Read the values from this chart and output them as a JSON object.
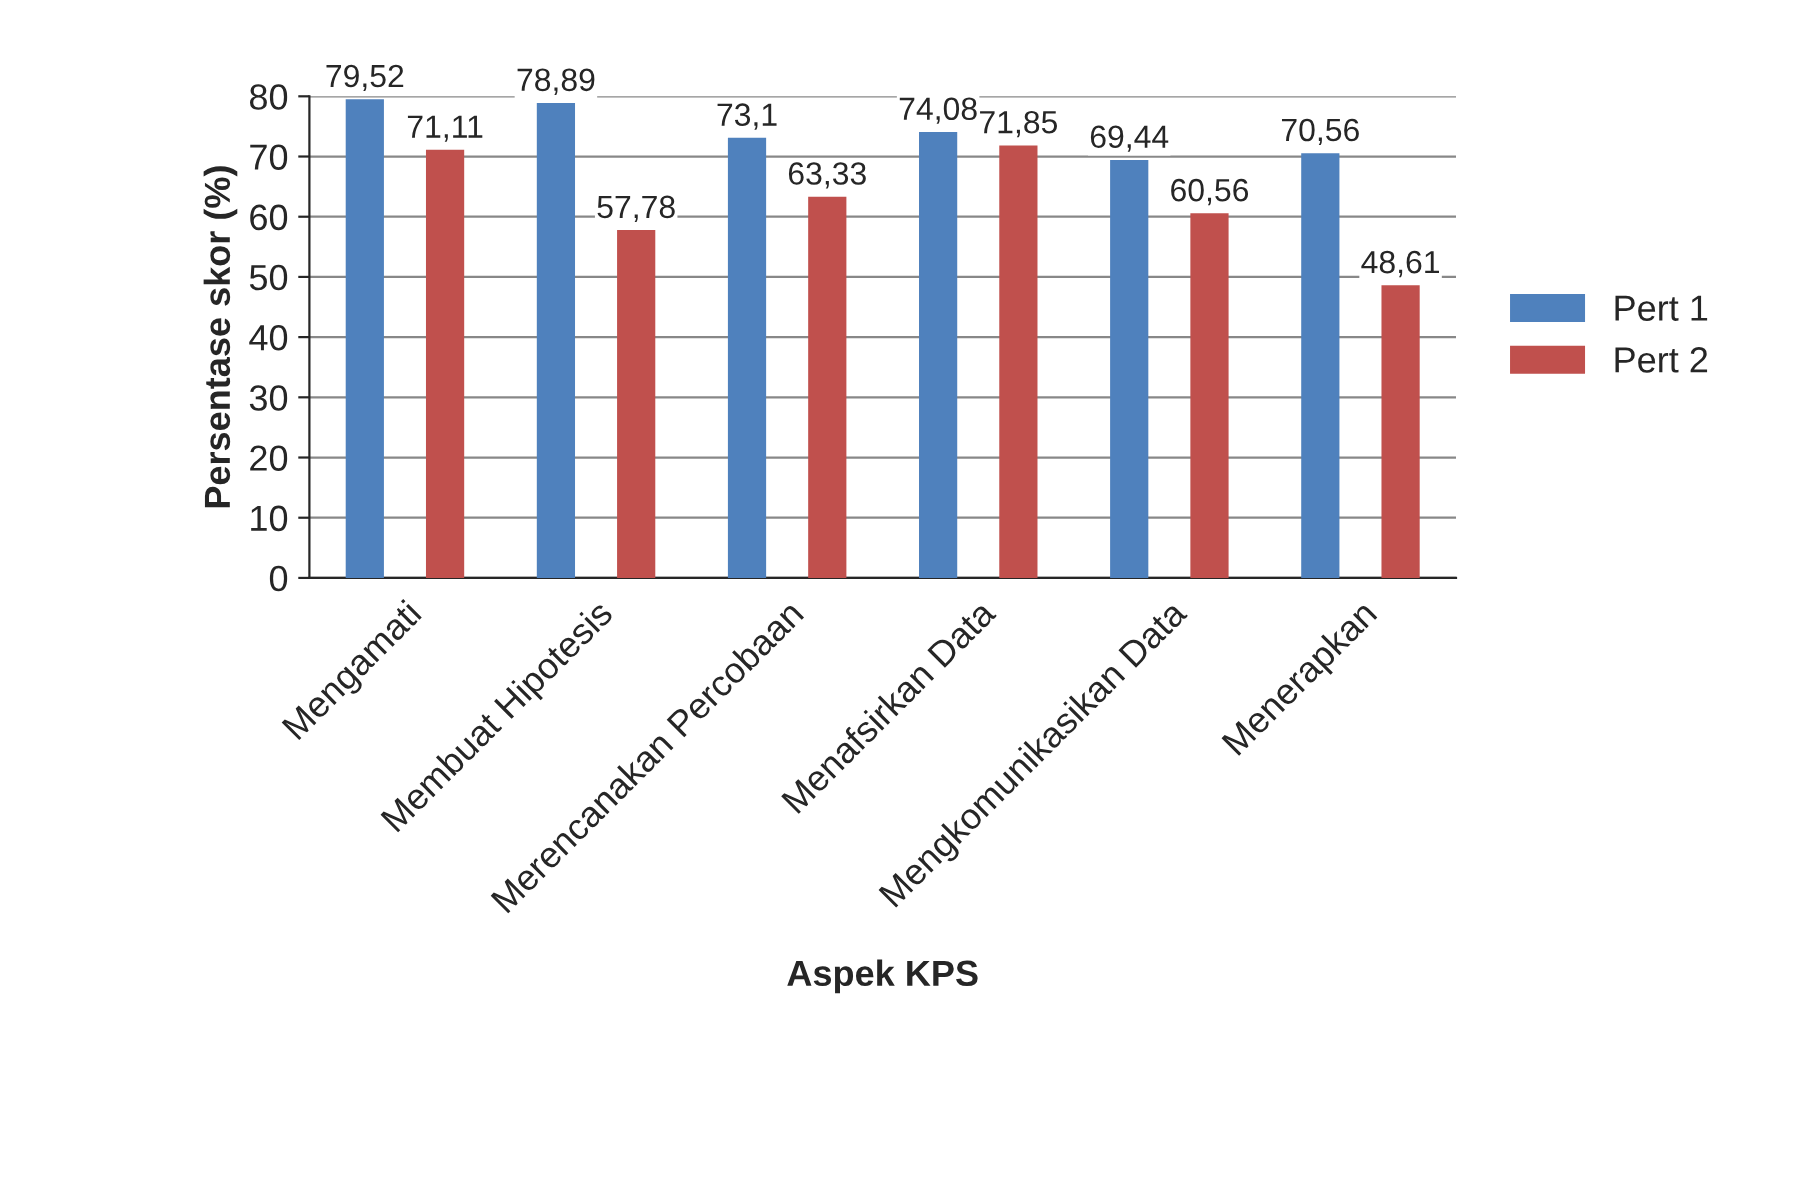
{
  "chart_data": {
    "type": "bar",
    "xlabel": "Aspek KPS",
    "ylabel": "Persentase skor (%)",
    "categories": [
      "Mengamati",
      "Membuat Hipotesis",
      "Merencanakan Percobaan",
      "Menafsirkan Data",
      "Mengkomunikasikan Data",
      "Menerapkan"
    ],
    "series": [
      {
        "name": "Pert 1",
        "color": "#4f81bd",
        "values": [
          79.52,
          78.89,
          73.1,
          74.08,
          69.44,
          70.56
        ],
        "value_labels": [
          "79,52",
          "78,89",
          "73,1",
          "74,08",
          "69,44",
          "70,56"
        ]
      },
      {
        "name": "Pert 2",
        "color": "#c0504d",
        "values": [
          71.11,
          57.78,
          63.33,
          71.85,
          60.56,
          48.61
        ],
        "value_labels": [
          "71,11",
          "57,78",
          "63,33",
          "71,85",
          "60,56",
          "48,61"
        ]
      }
    ],
    "ylim": [
      0,
      80
    ],
    "yticks": [
      0,
      10,
      20,
      30,
      40,
      50,
      60,
      70,
      80
    ],
    "grid": "y",
    "legend": "right"
  }
}
